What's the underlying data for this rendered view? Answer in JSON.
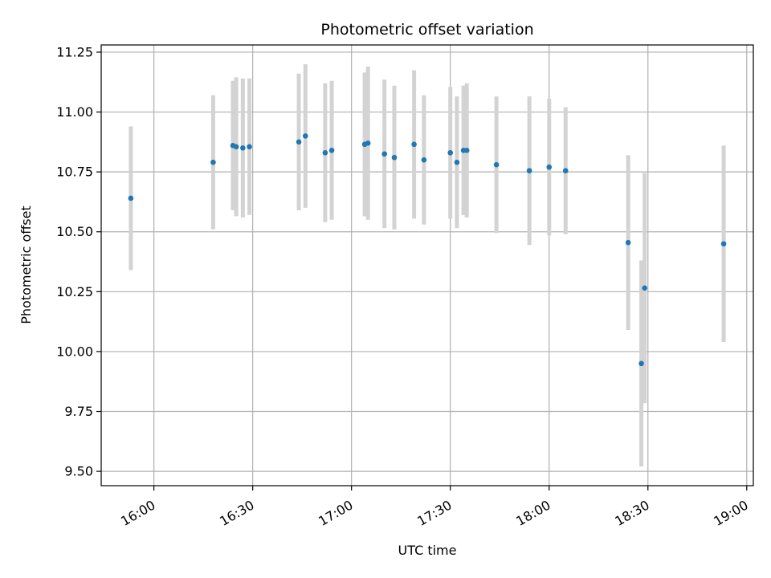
{
  "chart_data": {
    "type": "scatter",
    "title": "Photometric offset variation",
    "xlabel": "UTC time",
    "ylabel": "Photometric offset",
    "x_ticks": [
      "16:00",
      "16:30",
      "17:00",
      "17:30",
      "18:00",
      "18:30",
      "19:00"
    ],
    "y_ticks": [
      "9.50",
      "9.75",
      "10.00",
      "10.25",
      "10.50",
      "10.75",
      "11.00",
      "11.25"
    ],
    "xlim": [
      "15:44",
      "19:02"
    ],
    "ylim": [
      9.44,
      11.28
    ],
    "grid": true,
    "colors": {
      "points": "#1f77b4",
      "errorbars": "#d3d3d3",
      "grid": "#b0b0b0"
    },
    "points": [
      {
        "x": "15:53",
        "y": 10.64,
        "err": 0.3
      },
      {
        "x": "16:18",
        "y": 10.79,
        "err": 0.28
      },
      {
        "x": "16:24",
        "y": 10.86,
        "err": 0.27
      },
      {
        "x": "16:25",
        "y": 10.855,
        "err": 0.29
      },
      {
        "x": "16:27",
        "y": 10.85,
        "err": 0.29
      },
      {
        "x": "16:29",
        "y": 10.855,
        "err": 0.285
      },
      {
        "x": "16:44",
        "y": 10.875,
        "err": 0.285
      },
      {
        "x": "16:46",
        "y": 10.9,
        "err": 0.3
      },
      {
        "x": "16:52",
        "y": 10.83,
        "err": 0.29
      },
      {
        "x": "16:54",
        "y": 10.84,
        "err": 0.29
      },
      {
        "x": "17:04",
        "y": 10.865,
        "err": 0.3
      },
      {
        "x": "17:05",
        "y": 10.87,
        "err": 0.32
      },
      {
        "x": "17:10",
        "y": 10.825,
        "err": 0.31
      },
      {
        "x": "17:13",
        "y": 10.81,
        "err": 0.3
      },
      {
        "x": "17:19",
        "y": 10.865,
        "err": 0.31
      },
      {
        "x": "17:22",
        "y": 10.8,
        "err": 0.27
      },
      {
        "x": "17:30",
        "y": 10.83,
        "err": 0.275
      },
      {
        "x": "17:32",
        "y": 10.79,
        "err": 0.275
      },
      {
        "x": "17:34",
        "y": 10.84,
        "err": 0.27
      },
      {
        "x": "17:35",
        "y": 10.84,
        "err": 0.28
      },
      {
        "x": "17:44",
        "y": 10.78,
        "err": 0.285
      },
      {
        "x": "17:54",
        "y": 10.755,
        "err": 0.31
      },
      {
        "x": "18:00",
        "y": 10.77,
        "err": 0.285
      },
      {
        "x": "18:05",
        "y": 10.755,
        "err": 0.265
      },
      {
        "x": "18:24",
        "y": 10.455,
        "err": 0.365
      },
      {
        "x": "18:28",
        "y": 9.95,
        "err": 0.43
      },
      {
        "x": "18:29",
        "y": 10.265,
        "err": 0.48
      },
      {
        "x": "18:53",
        "y": 10.45,
        "err": 0.41
      }
    ]
  }
}
